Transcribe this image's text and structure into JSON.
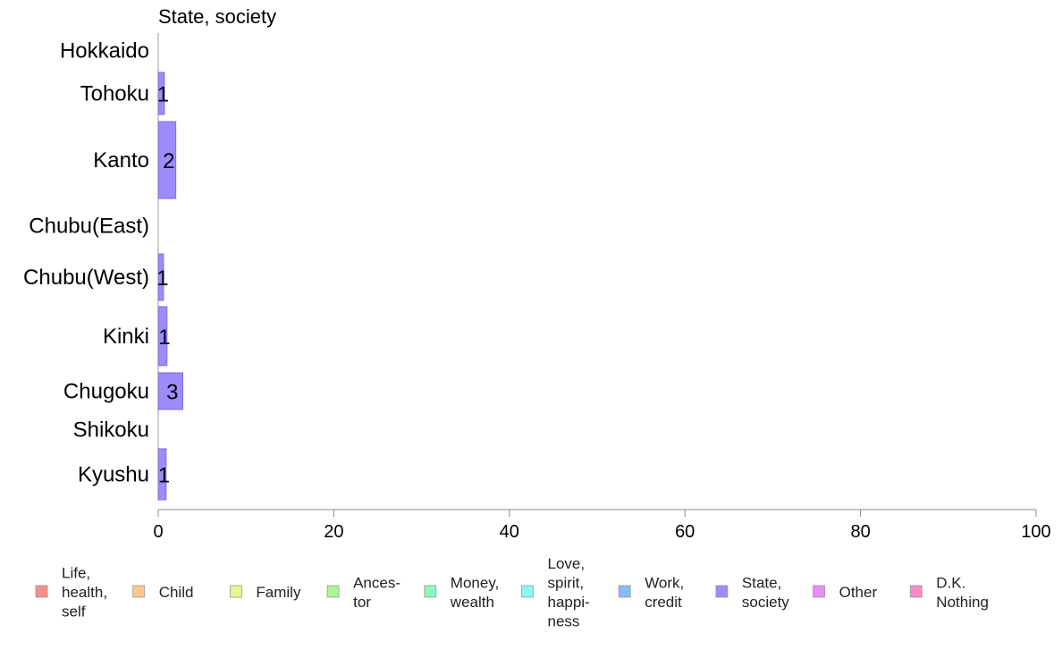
{
  "chart_data": {
    "type": "bar",
    "orientation": "horizontal",
    "title": "State, society",
    "categories": [
      "Hokkaido",
      "Tohoku",
      "Kanto",
      "Chubu(East)",
      "Chubu(West)",
      "Kinki",
      "Chugoku",
      "Shikoku",
      "Kyushu"
    ],
    "series": [
      {
        "name": "State, society",
        "color": "#9b8cfa",
        "values": [
          0,
          0.7,
          2.0,
          0,
          0.6,
          1.0,
          2.8,
          0,
          0.9
        ],
        "labels": [
          "",
          "1",
          "2",
          "",
          "1",
          "1",
          "3",
          "",
          "1"
        ]
      }
    ],
    "xlim": [
      0,
      100
    ],
    "x_ticks": [
      0,
      20,
      40,
      60,
      80,
      100
    ],
    "x_tick_labels": [
      "0",
      "20",
      "40",
      "60",
      "80",
      "100"
    ],
    "xlabel": "",
    "ylabel": "",
    "grid": false,
    "legend_position": "bottom",
    "legend": [
      {
        "label": "Life,\nhealth,\nself",
        "color": "#f98c8c"
      },
      {
        "label": "Child",
        "color": "#fbc98c"
      },
      {
        "label": "Family",
        "color": "#e6f78c"
      },
      {
        "label": "Ances-\ntor",
        "color": "#a8f78c"
      },
      {
        "label": "Money,\nwealth",
        "color": "#8cf7c0"
      },
      {
        "label": "Love,\nspirit,\nhappi-\nness",
        "color": "#8cf7f7"
      },
      {
        "label": "Work,\ncredit",
        "color": "#8cb9f7"
      },
      {
        "label": "State,\nsociety",
        "color": "#9b8cfa"
      },
      {
        "label": "Other",
        "color": "#e88cf7"
      },
      {
        "label": "D.K.\nNothing",
        "color": "#f78cc7"
      }
    ]
  }
}
